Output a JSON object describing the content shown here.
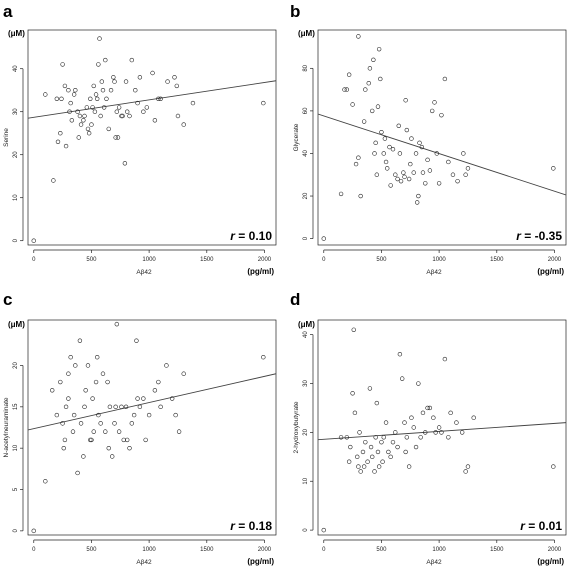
{
  "chart_data": [
    {
      "type": "scatter",
      "panel": "a",
      "ylabel": "Serine",
      "xlabel": "Aβ42",
      "y_unit": "(μM)",
      "x_unit": "(pg/ml)",
      "r_label": "r",
      "r_value": "= 0.10",
      "xlim": [
        -50,
        2100
      ],
      "ylim": [
        -1,
        49
      ],
      "xticks": [
        0,
        500,
        1000,
        1500,
        2000
      ],
      "yticks": [
        0,
        10,
        20,
        30,
        40
      ],
      "fit_line": [
        [
          -50,
          28.5
        ],
        [
          2100,
          37.2
        ]
      ],
      "points": [
        [
          0,
          0
        ],
        [
          100,
          34
        ],
        [
          170,
          14
        ],
        [
          200,
          33
        ],
        [
          210,
          23
        ],
        [
          230,
          25
        ],
        [
          240,
          33
        ],
        [
          250,
          41
        ],
        [
          270,
          36
        ],
        [
          280,
          22
        ],
        [
          300,
          35
        ],
        [
          310,
          30
        ],
        [
          320,
          32
        ],
        [
          330,
          28
        ],
        [
          350,
          34
        ],
        [
          360,
          35
        ],
        [
          380,
          30
        ],
        [
          390,
          24
        ],
        [
          400,
          29
        ],
        [
          410,
          27
        ],
        [
          430,
          28
        ],
        [
          440,
          29
        ],
        [
          460,
          31
        ],
        [
          470,
          26
        ],
        [
          480,
          25
        ],
        [
          490,
          33
        ],
        [
          500,
          27
        ],
        [
          510,
          31
        ],
        [
          520,
          36
        ],
        [
          530,
          30
        ],
        [
          540,
          34
        ],
        [
          550,
          33
        ],
        [
          560,
          41
        ],
        [
          570,
          47
        ],
        [
          580,
          29
        ],
        [
          590,
          37
        ],
        [
          600,
          35
        ],
        [
          610,
          31
        ],
        [
          620,
          42
        ],
        [
          630,
          33
        ],
        [
          650,
          26
        ],
        [
          670,
          35
        ],
        [
          690,
          38
        ],
        [
          700,
          37
        ],
        [
          710,
          24
        ],
        [
          720,
          30
        ],
        [
          730,
          24
        ],
        [
          740,
          31
        ],
        [
          760,
          29
        ],
        [
          770,
          29
        ],
        [
          790,
          18
        ],
        [
          800,
          37
        ],
        [
          810,
          30
        ],
        [
          830,
          29
        ],
        [
          850,
          42
        ],
        [
          880,
          35
        ],
        [
          900,
          32
        ],
        [
          920,
          38
        ],
        [
          950,
          30
        ],
        [
          980,
          31
        ],
        [
          1030,
          39
        ],
        [
          1050,
          28
        ],
        [
          1080,
          33
        ],
        [
          1100,
          33
        ],
        [
          1160,
          37
        ],
        [
          1220,
          38
        ],
        [
          1240,
          36
        ],
        [
          1250,
          29
        ],
        [
          1300,
          27
        ],
        [
          1380,
          32
        ],
        [
          1990,
          32
        ]
      ]
    },
    {
      "type": "scatter",
      "panel": "b",
      "ylabel": "Glycerate",
      "xlabel": "Aβ42",
      "y_unit": "(μM)",
      "x_unit": "(pg/ml)",
      "r_label": "r",
      "r_value": "= -0.35",
      "xlim": [
        -50,
        2100
      ],
      "ylim": [
        -3,
        98
      ],
      "xticks": [
        0,
        500,
        1000,
        1500,
        2000
      ],
      "yticks": [
        0,
        20,
        40,
        60,
        80
      ],
      "fit_line": [
        [
          -50,
          58.5
        ],
        [
          2100,
          20.5
        ]
      ],
      "points": [
        [
          0,
          0
        ],
        [
          150,
          21
        ],
        [
          180,
          70
        ],
        [
          200,
          70
        ],
        [
          220,
          77
        ],
        [
          250,
          63
        ],
        [
          280,
          35
        ],
        [
          300,
          38
        ],
        [
          300,
          95
        ],
        [
          320,
          20
        ],
        [
          350,
          55
        ],
        [
          360,
          70
        ],
        [
          390,
          73
        ],
        [
          400,
          80
        ],
        [
          420,
          60
        ],
        [
          430,
          84
        ],
        [
          440,
          40
        ],
        [
          450,
          45
        ],
        [
          460,
          30
        ],
        [
          470,
          62
        ],
        [
          480,
          89
        ],
        [
          490,
          75
        ],
        [
          500,
          50
        ],
        [
          520,
          40
        ],
        [
          530,
          47
        ],
        [
          540,
          36
        ],
        [
          550,
          33
        ],
        [
          570,
          43
        ],
        [
          580,
          25
        ],
        [
          600,
          42
        ],
        [
          620,
          30
        ],
        [
          640,
          28
        ],
        [
          650,
          53
        ],
        [
          660,
          40
        ],
        [
          670,
          27
        ],
        [
          690,
          31
        ],
        [
          700,
          29
        ],
        [
          710,
          65
        ],
        [
          720,
          51
        ],
        [
          740,
          28
        ],
        [
          750,
          35
        ],
        [
          760,
          47
        ],
        [
          780,
          31
        ],
        [
          800,
          40
        ],
        [
          810,
          17
        ],
        [
          820,
          20
        ],
        [
          830,
          45
        ],
        [
          850,
          43
        ],
        [
          860,
          31
        ],
        [
          880,
          26
        ],
        [
          900,
          37
        ],
        [
          920,
          32
        ],
        [
          940,
          60
        ],
        [
          960,
          64
        ],
        [
          980,
          40
        ],
        [
          1000,
          26
        ],
        [
          1020,
          58
        ],
        [
          1050,
          75
        ],
        [
          1080,
          36
        ],
        [
          1120,
          30
        ],
        [
          1160,
          27
        ],
        [
          1210,
          40
        ],
        [
          1230,
          30
        ],
        [
          1250,
          33
        ],
        [
          1990,
          33
        ]
      ]
    },
    {
      "type": "scatter",
      "panel": "c",
      "ylabel": "N-acetylneuraminate",
      "xlabel": "Aβ42",
      "y_unit": "(μM)",
      "x_unit": "(pg/ml)",
      "r_label": "r",
      "r_value": "= 0.18",
      "xlim": [
        -50,
        2100
      ],
      "ylim": [
        -0.5,
        25.5
      ],
      "xticks": [
        0,
        500,
        1000,
        1500,
        2000
      ],
      "yticks": [
        0,
        5,
        10,
        15,
        20
      ],
      "fit_line": [
        [
          -50,
          12.2
        ],
        [
          2100,
          19
        ]
      ],
      "points": [
        [
          0,
          0
        ],
        [
          100,
          6
        ],
        [
          160,
          17
        ],
        [
          200,
          14
        ],
        [
          230,
          18
        ],
        [
          250,
          13
        ],
        [
          260,
          10
        ],
        [
          270,
          11
        ],
        [
          280,
          15
        ],
        [
          300,
          16
        ],
        [
          300,
          19
        ],
        [
          320,
          21
        ],
        [
          340,
          12
        ],
        [
          350,
          14
        ],
        [
          360,
          20
        ],
        [
          380,
          7
        ],
        [
          400,
          23
        ],
        [
          410,
          13
        ],
        [
          430,
          9
        ],
        [
          440,
          15
        ],
        [
          450,
          17
        ],
        [
          470,
          20
        ],
        [
          490,
          11
        ],
        [
          500,
          11
        ],
        [
          510,
          16
        ],
        [
          520,
          12
        ],
        [
          540,
          18
        ],
        [
          550,
          21
        ],
        [
          560,
          14
        ],
        [
          580,
          13
        ],
        [
          600,
          19
        ],
        [
          620,
          12
        ],
        [
          640,
          18
        ],
        [
          650,
          10
        ],
        [
          660,
          15
        ],
        [
          680,
          9
        ],
        [
          700,
          13
        ],
        [
          710,
          15
        ],
        [
          720,
          25
        ],
        [
          740,
          12
        ],
        [
          760,
          15
        ],
        [
          780,
          11
        ],
        [
          800,
          15
        ],
        [
          810,
          11
        ],
        [
          830,
          10
        ],
        [
          850,
          13
        ],
        [
          870,
          14
        ],
        [
          890,
          23
        ],
        [
          900,
          16
        ],
        [
          920,
          15
        ],
        [
          950,
          16
        ],
        [
          970,
          11
        ],
        [
          1000,
          14
        ],
        [
          1050,
          17
        ],
        [
          1080,
          18
        ],
        [
          1100,
          15
        ],
        [
          1150,
          20
        ],
        [
          1200,
          16
        ],
        [
          1230,
          14
        ],
        [
          1260,
          12
        ],
        [
          1300,
          19
        ],
        [
          1990,
          21
        ]
      ]
    },
    {
      "type": "scatter",
      "panel": "d",
      "ylabel": "2-hydroxybutyrate",
      "xlabel": "Aβ42",
      "y_unit": "(μM)",
      "x_unit": "(pg/ml)",
      "r_label": "r",
      "r_value": "= 0.01",
      "xlim": [
        -50,
        2100
      ],
      "ylim": [
        -1,
        43
      ],
      "xticks": [
        0,
        500,
        1000,
        1500,
        2000
      ],
      "yticks": [
        0,
        10,
        20,
        30,
        40
      ],
      "fit_line": [
        [
          -50,
          18.5
        ],
        [
          2100,
          22
        ]
      ],
      "points": [
        [
          0,
          0
        ],
        [
          150,
          19
        ],
        [
          200,
          19
        ],
        [
          220,
          14
        ],
        [
          230,
          17
        ],
        [
          250,
          28
        ],
        [
          260,
          41
        ],
        [
          270,
          24
        ],
        [
          290,
          15
        ],
        [
          300,
          13
        ],
        [
          310,
          20
        ],
        [
          320,
          12
        ],
        [
          340,
          16
        ],
        [
          350,
          13
        ],
        [
          360,
          18
        ],
        [
          380,
          14
        ],
        [
          400,
          29
        ],
        [
          410,
          17
        ],
        [
          420,
          15
        ],
        [
          440,
          12
        ],
        [
          450,
          19
        ],
        [
          460,
          26
        ],
        [
          470,
          16
        ],
        [
          480,
          13
        ],
        [
          500,
          18
        ],
        [
          510,
          14
        ],
        [
          520,
          19
        ],
        [
          540,
          22
        ],
        [
          560,
          16
        ],
        [
          580,
          15
        ],
        [
          600,
          18
        ],
        [
          620,
          20
        ],
        [
          640,
          17
        ],
        [
          660,
          36
        ],
        [
          680,
          31
        ],
        [
          700,
          22
        ],
        [
          710,
          16
        ],
        [
          720,
          19
        ],
        [
          740,
          13
        ],
        [
          760,
          23
        ],
        [
          780,
          21
        ],
        [
          800,
          17
        ],
        [
          820,
          30
        ],
        [
          840,
          19
        ],
        [
          860,
          24
        ],
        [
          880,
          20
        ],
        [
          900,
          25
        ],
        [
          920,
          25
        ],
        [
          950,
          23
        ],
        [
          970,
          20
        ],
        [
          1000,
          21
        ],
        [
          1020,
          20
        ],
        [
          1050,
          35
        ],
        [
          1080,
          19
        ],
        [
          1100,
          24
        ],
        [
          1150,
          22
        ],
        [
          1200,
          20
        ],
        [
          1230,
          12
        ],
        [
          1250,
          13
        ],
        [
          1300,
          23
        ],
        [
          1990,
          13
        ]
      ]
    }
  ]
}
